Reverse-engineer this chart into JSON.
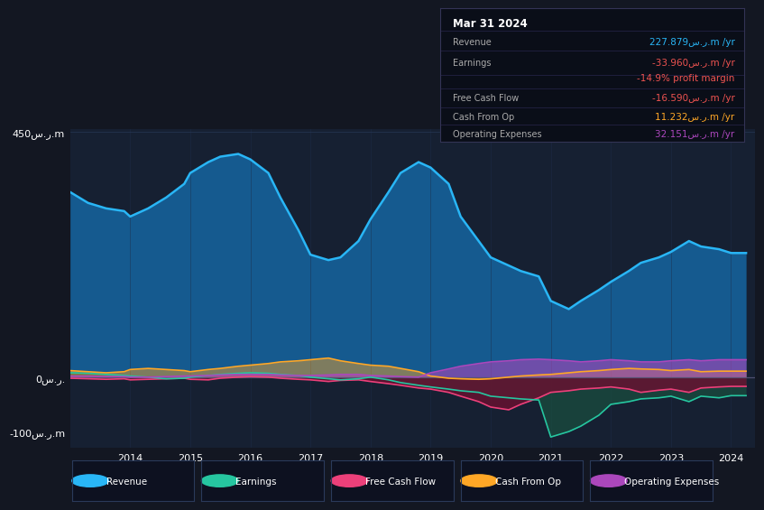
{
  "bg_color": "#131722",
  "plot_bg": "#162032",
  "title": "Mar 31 2024",
  "years": [
    2013.0,
    2013.3,
    2013.6,
    2013.9,
    2014.0,
    2014.3,
    2014.6,
    2014.9,
    2015.0,
    2015.3,
    2015.5,
    2015.8,
    2016.0,
    2016.3,
    2016.5,
    2016.8,
    2017.0,
    2017.3,
    2017.5,
    2017.8,
    2018.0,
    2018.3,
    2018.5,
    2018.8,
    2019.0,
    2019.3,
    2019.5,
    2019.8,
    2020.0,
    2020.3,
    2020.5,
    2020.8,
    2021.0,
    2021.3,
    2021.5,
    2021.8,
    2022.0,
    2022.3,
    2022.5,
    2022.8,
    2023.0,
    2023.3,
    2023.5,
    2023.8,
    2024.0,
    2024.25
  ],
  "revenue": [
    340,
    320,
    310,
    305,
    295,
    310,
    330,
    355,
    375,
    395,
    405,
    410,
    400,
    375,
    330,
    270,
    225,
    215,
    220,
    250,
    290,
    340,
    375,
    395,
    385,
    355,
    295,
    250,
    220,
    205,
    195,
    185,
    140,
    125,
    140,
    160,
    175,
    195,
    210,
    220,
    230,
    250,
    240,
    235,
    228,
    228
  ],
  "earnings": [
    8,
    7,
    5,
    3,
    2,
    0,
    -3,
    -2,
    0,
    3,
    5,
    7,
    8,
    7,
    5,
    3,
    0,
    -3,
    -5,
    -3,
    0,
    -5,
    -10,
    -15,
    -18,
    -22,
    -25,
    -28,
    -35,
    -38,
    -40,
    -42,
    -110,
    -100,
    -90,
    -70,
    -50,
    -45,
    -40,
    -38,
    -35,
    -45,
    -35,
    -38,
    -34,
    -34
  ],
  "free_cash_flow": [
    -2,
    -3,
    -4,
    -3,
    -5,
    -4,
    -3,
    -2,
    -4,
    -5,
    -2,
    0,
    1,
    0,
    -2,
    -4,
    -5,
    -8,
    -6,
    -5,
    -8,
    -12,
    -15,
    -20,
    -22,
    -28,
    -35,
    -45,
    -55,
    -60,
    -50,
    -38,
    -28,
    -25,
    -22,
    -20,
    -18,
    -22,
    -28,
    -24,
    -22,
    -28,
    -20,
    -18,
    -17,
    -17
  ],
  "cash_from_op": [
    12,
    10,
    8,
    10,
    14,
    16,
    14,
    12,
    10,
    14,
    16,
    20,
    22,
    25,
    28,
    30,
    32,
    35,
    30,
    25,
    22,
    20,
    16,
    10,
    2,
    -2,
    -3,
    -4,
    -3,
    0,
    2,
    4,
    5,
    8,
    10,
    12,
    14,
    16,
    15,
    14,
    12,
    14,
    10,
    11,
    11,
    11
  ],
  "operating_expenses": [
    2,
    2,
    1,
    1,
    0,
    0,
    1,
    2,
    2,
    3,
    4,
    5,
    5,
    5,
    4,
    3,
    3,
    4,
    5,
    5,
    3,
    2,
    1,
    0,
    8,
    15,
    20,
    25,
    28,
    30,
    32,
    33,
    32,
    30,
    28,
    30,
    32,
    30,
    28,
    28,
    30,
    32,
    30,
    32,
    32,
    32
  ],
  "ylim": [
    -130,
    455
  ],
  "xlim": [
    2013.0,
    2024.4
  ],
  "yticks": [
    -100,
    0,
    450
  ],
  "ytick_labels": [
    "-100س.ر.m",
    "0س.ر.",
    "450س.ر.m"
  ],
  "xticks": [
    2014,
    2015,
    2016,
    2017,
    2018,
    2019,
    2020,
    2021,
    2022,
    2023,
    2024
  ],
  "revenue_color": "#29b6f6",
  "revenue_fill": "#1565a0",
  "earnings_color": "#26c6a0",
  "earnings_fill": "#1a5040",
  "fcf_color": "#ec407a",
  "fcf_fill": "#6b1030",
  "cashop_color": "#ffa726",
  "cashop_fill": "#4a3010",
  "opex_color": "#ab47bc",
  "opex_fill": "#4a1a5a",
  "zero_line_color": "#555577",
  "grid_color": "#1e2d4a",
  "legend_items": [
    {
      "label": "Revenue",
      "color": "#29b6f6"
    },
    {
      "label": "Earnings",
      "color": "#26c6a0"
    },
    {
      "label": "Free Cash Flow",
      "color": "#ec407a"
    },
    {
      "label": "Cash From Op",
      "color": "#ffa726"
    },
    {
      "label": "Operating Expenses",
      "color": "#ab47bc"
    }
  ],
  "info_box_rows": [
    {
      "label": "Revenue",
      "value": "227.879س.ر.m /yr",
      "color": "#29b6f6"
    },
    {
      "label": "Earnings",
      "value": "-33.960س.ر.m /yr",
      "color": "#ef5350"
    },
    {
      "label": "",
      "value": "-14.9% profit margin",
      "color": "#ef5350"
    },
    {
      "label": "Free Cash Flow",
      "value": "-16.590س.ر.m /yr",
      "color": "#ef5350"
    },
    {
      "label": "Cash From Op",
      "value": "11.232س.ر.m /yr",
      "color": "#ffa726"
    },
    {
      "label": "Operating Expenses",
      "value": "32.151س.ر.m /yr",
      "color": "#ab47bc"
    }
  ]
}
